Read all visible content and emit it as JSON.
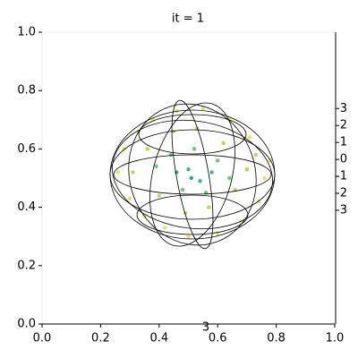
{
  "chart_data": {
    "type": "scatter",
    "title": "it = 1",
    "xlim": [
      0,
      1
    ],
    "ylim": [
      0,
      1
    ],
    "xticks": [
      {
        "value": 0,
        "label": "0.0"
      },
      0.2,
      0.4,
      0.6,
      0.8,
      {
        "value": 1,
        "label": "1.0"
      }
    ],
    "yticks": [
      {
        "value": 0,
        "label": "0.0"
      },
      0.2,
      0.4,
      0.6,
      0.8,
      {
        "value": 1,
        "label": "1.0"
      }
    ],
    "y2lim": [
      -9.7,
      7.5
    ],
    "y2ticks": [
      3,
      2,
      1,
      0,
      -1,
      -2,
      -3
    ],
    "annotations": [
      "3"
    ],
    "x": [
      0.26,
      0.28,
      0.3,
      0.33,
      0.35,
      0.38,
      0.42,
      0.46,
      0.5,
      0.55,
      0.6,
      0.64,
      0.68,
      0.71,
      0.74,
      0.76,
      0.78,
      0.31,
      0.36,
      0.4,
      0.45,
      0.49,
      0.53,
      0.57,
      0.62,
      0.66,
      0.7,
      0.73,
      0.39,
      0.44,
      0.48,
      0.52,
      0.56,
      0.6,
      0.64,
      0.46,
      0.5,
      0.54,
      0.58,
      0.51
    ],
    "y": [
      0.52,
      0.6,
      0.43,
      0.66,
      0.37,
      0.7,
      0.33,
      0.73,
      0.3,
      0.74,
      0.31,
      0.7,
      0.35,
      0.64,
      0.42,
      0.5,
      0.56,
      0.52,
      0.6,
      0.44,
      0.66,
      0.38,
      0.67,
      0.4,
      0.62,
      0.46,
      0.53,
      0.58,
      0.54,
      0.58,
      0.46,
      0.6,
      0.45,
      0.56,
      0.5,
      0.52,
      0.53,
      0.49,
      0.52,
      0.5
    ],
    "colors": [
      "#e2e45a",
      "#e2e45a",
      "#e2e45a",
      "#e2e45a",
      "#e2e45a",
      "#e2e45a",
      "#e2e45a",
      "#e2e45a",
      "#e2e45a",
      "#e2e45a",
      "#e2e45a",
      "#e2e45a",
      "#e2e45a",
      "#e2e45a",
      "#e2e45a",
      "#e2e45a",
      "#e2e45a",
      "#b2dc4c",
      "#b2dc4c",
      "#b2dc4c",
      "#b2dc4c",
      "#b2dc4c",
      "#b2dc4c",
      "#b2dc4c",
      "#b2dc4c",
      "#b2dc4c",
      "#b2dc4c",
      "#b2dc4c",
      "#6cc878",
      "#6cc878",
      "#6cc878",
      "#6cc878",
      "#6cc878",
      "#6cc878",
      "#6cc878",
      "#3bb49a",
      "#3bb49a",
      "#3bb49a",
      "#3bb49a",
      "#2aa0a4"
    ]
  }
}
